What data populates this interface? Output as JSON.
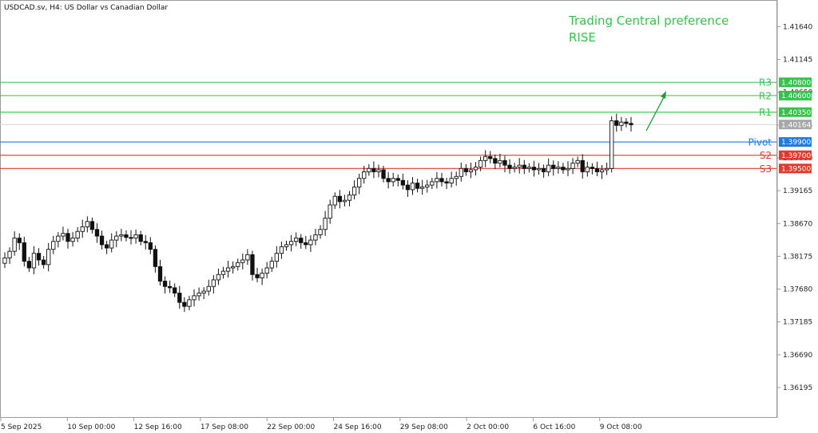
{
  "symbol": "USDCAD.sv, H4:  US Dollar vs Canadian Dollar",
  "preference": {
    "title": "Trading Central preference",
    "value": "RISE"
  },
  "levels": [
    {
      "name": "R3",
      "value": 1.408,
      "label": "1.40800",
      "color": "#35c24a"
    },
    {
      "name": "R2",
      "value": 1.406,
      "label": "1.40600",
      "color": "#35c24a"
    },
    {
      "name": "R1",
      "value": 1.4035,
      "label": "1.40350",
      "color": "#35c24a"
    },
    {
      "name": "Pivot",
      "value": 1.399,
      "label": "1.39900",
      "color": "#1e7be0"
    },
    {
      "name": "S2",
      "value": 1.397,
      "label": "1.39700",
      "color": "#e03a2f"
    },
    {
      "name": "S3",
      "value": 1.395,
      "label": "1.39500",
      "color": "#e03a2f"
    }
  ],
  "current_price": {
    "value": 1.40164,
    "label": "1.40164",
    "color": "#a8a8a8"
  },
  "chart_data": {
    "type": "candlestick",
    "y_ticks": [
      "1.41640",
      "1.41145",
      "1.40650",
      "1.40155",
      "1.39660",
      "1.39165",
      "1.38670",
      "1.38175",
      "1.37680",
      "1.37185",
      "1.36690",
      "1.36195"
    ],
    "x_ticks": [
      "5 Sep 2025",
      "10 Sep 00:00",
      "12 Sep 16:00",
      "17 Sep 08:00",
      "22 Sep 00:00",
      "24 Sep 16:00",
      "29 Sep 08:00",
      "2 Oct 00:00",
      "6 Oct 16:00",
      "9 Oct 08:00"
    ],
    "ylim": [
      1.3575,
      1.4203
    ],
    "grid": false,
    "close": [
      1.3815,
      1.3825,
      1.3845,
      1.3838,
      1.381,
      1.38,
      1.3822,
      1.3812,
      1.3805,
      1.3828,
      1.384,
      1.3848,
      1.3852,
      1.384,
      1.3845,
      1.3855,
      1.3862,
      1.387,
      1.3858,
      1.3848,
      1.3835,
      1.383,
      1.3842,
      1.3848,
      1.385,
      1.3846,
      1.3845,
      1.385,
      1.384,
      1.3838,
      1.3828,
      1.3802,
      1.378,
      1.3772,
      1.377,
      1.3762,
      1.3748,
      1.3742,
      1.3752,
      1.3758,
      1.3762,
      1.3765,
      1.3772,
      1.3782,
      1.379,
      1.3795,
      1.38,
      1.3802,
      1.3808,
      1.3812,
      1.382,
      1.379,
      1.3785,
      1.3792,
      1.38,
      1.381,
      1.3822,
      1.3832,
      1.3835,
      1.384,
      1.3845,
      1.3838,
      1.3835,
      1.3842,
      1.385,
      1.3858,
      1.3875,
      1.3895,
      1.3908,
      1.39,
      1.3902,
      1.391,
      1.3922,
      1.3935,
      1.3945,
      1.395,
      1.3945,
      1.3948,
      1.3935,
      1.393,
      1.3935,
      1.3932,
      1.3925,
      1.3918,
      1.3928,
      1.392,
      1.3922,
      1.3925,
      1.393,
      1.3935,
      1.393,
      1.3928,
      1.3935,
      1.3938,
      1.395,
      1.3945,
      1.3948,
      1.3952,
      1.3962,
      1.3968,
      1.3965,
      1.3958,
      1.3962,
      1.3955,
      1.395,
      1.3952,
      1.3955,
      1.395,
      1.3952,
      1.3948,
      1.395,
      1.3945,
      1.3955,
      1.395,
      1.3952,
      1.3948,
      1.395,
      1.3958,
      1.3962,
      1.3945,
      1.3952,
      1.395,
      1.3945,
      1.3948,
      1.395,
      1.4022,
      1.4015,
      1.402,
      1.4018,
      1.4016
    ],
    "note": "values estimated from the price axis"
  }
}
